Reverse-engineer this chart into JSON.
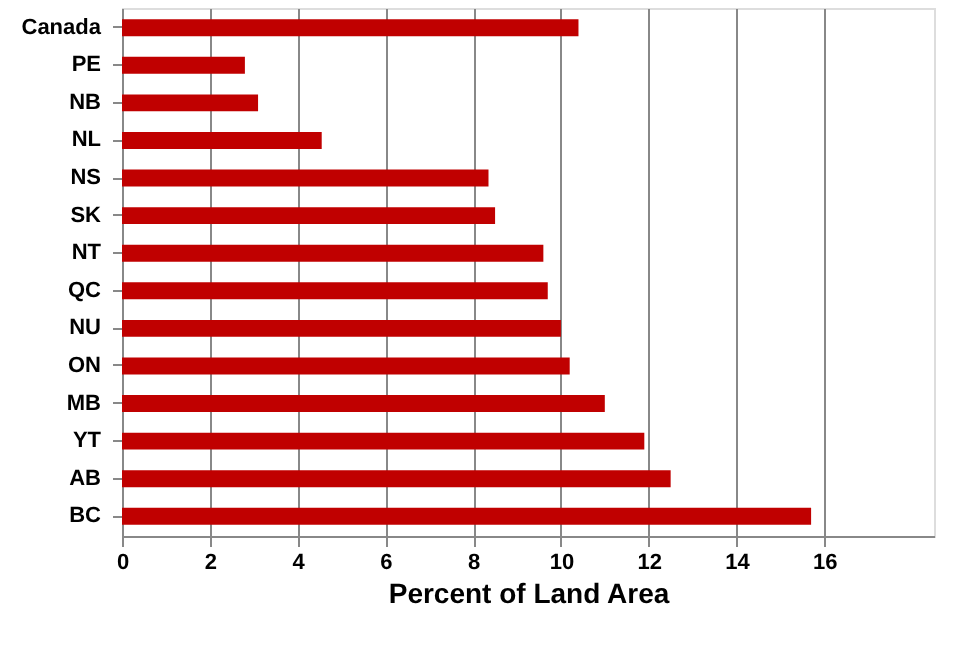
{
  "chart_data": {
    "type": "bar",
    "orientation": "horizontal",
    "xlabel": "Percent of Land Area",
    "categories": [
      "Canada",
      "PE",
      "NB",
      "NL",
      "NS",
      "SK",
      "NT",
      "QC",
      "NU",
      "ON",
      "MB",
      "YT",
      "AB",
      "BC"
    ],
    "series": [
      {
        "color": "#c00000",
        "values": [
          10.4,
          2.8,
          3.1,
          4.55,
          8.35,
          8.5,
          9.6,
          9.7,
          10.0,
          10.2,
          11.0,
          11.9,
          12.5,
          15.7
        ]
      }
    ],
    "xlim": [
      0,
      18.5
    ],
    "xticks": [
      0,
      2,
      4,
      6,
      8,
      10,
      12,
      14,
      16
    ],
    "grid": "x"
  }
}
